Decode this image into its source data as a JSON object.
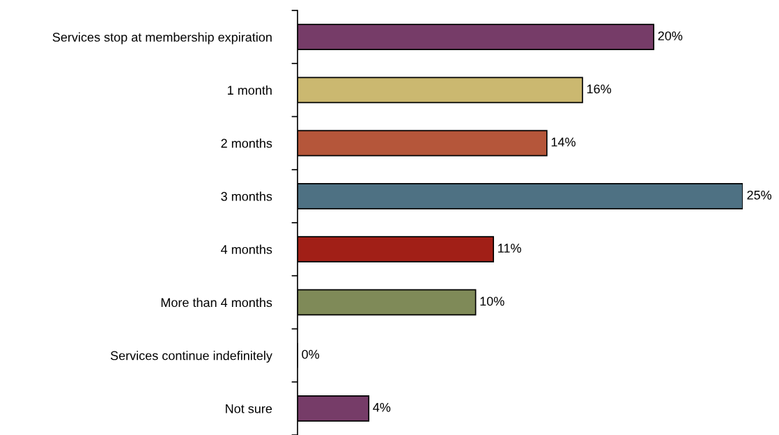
{
  "chart_data": {
    "type": "bar",
    "orientation": "horizontal",
    "categories": [
      "Services stop at membership expiration",
      "1 month",
      "2 months",
      "3 months",
      "4 months",
      "More than 4 months",
      "Services continue indefinitely",
      "Not sure"
    ],
    "values": [
      20,
      16,
      14,
      25,
      11,
      10,
      0,
      4
    ],
    "colors": [
      "#763c68",
      "#cbb870",
      "#b5563a",
      "#4e7183",
      "#a11f17",
      "#7f8a58",
      "#763c68",
      "#763c68"
    ],
    "value_labels": [
      "20%",
      "16%",
      "14%",
      "25%",
      "11%",
      "10%",
      "0%",
      "4%"
    ],
    "grid": false,
    "legend": false
  }
}
